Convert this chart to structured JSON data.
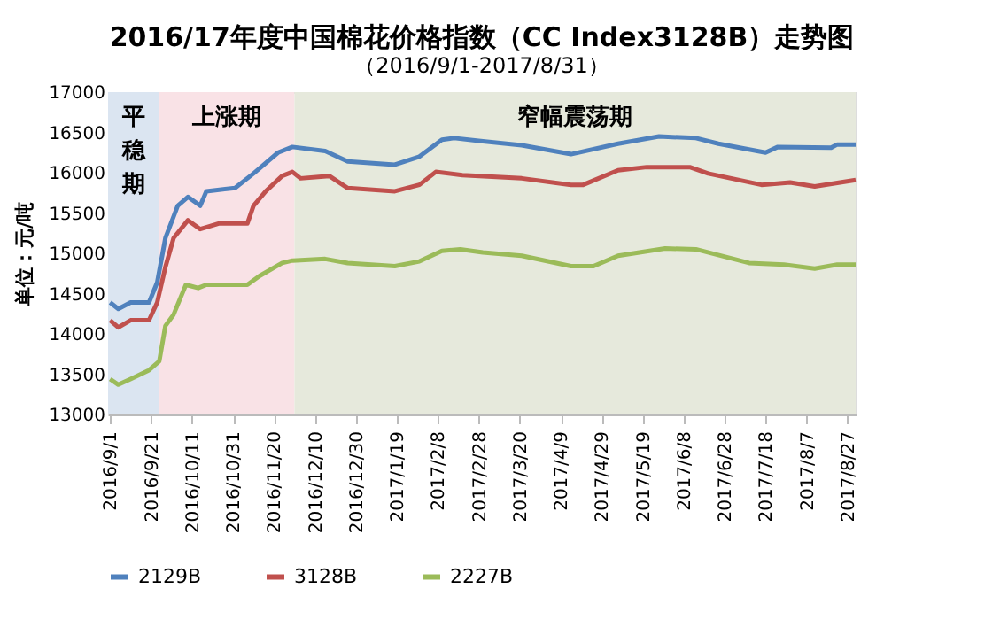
{
  "chart_data": {
    "type": "line",
    "title": "2016/17年度中国棉花价格指数（CC Index3128B）走势图",
    "subtitle": "（2016/9/1-2017/8/31）",
    "ylabel": "单位：元/吨",
    "x": [
      "2016-09-01",
      "2016-09-05",
      "2016-09-11",
      "2016-09-20",
      "2016-09-24",
      "2016-09-28",
      "2016-10-04",
      "2016-10-09",
      "2016-10-15",
      "2016-10-18",
      "2016-11-01",
      "2016-11-10",
      "2016-11-22",
      "2016-11-29",
      "2016-12-15",
      "2016-12-26",
      "2017-01-18",
      "2017-01-30",
      "2017-02-10",
      "2017-02-16",
      "2017-03-02",
      "2017-03-21",
      "2017-04-14",
      "2017-05-07",
      "2017-05-27",
      "2017-06-14",
      "2017-06-25",
      "2017-07-18",
      "2017-07-24",
      "2017-08-19",
      "2017-08-22",
      "2017-08-31"
    ],
    "series": [
      {
        "name": "2129B",
        "color": "#4f81bd",
        "values": [
          14390,
          14310,
          14390,
          14390,
          14640,
          15190,
          15590,
          15700,
          15590,
          15770,
          15810,
          15990,
          16250,
          16320,
          16270,
          16140,
          16100,
          16200,
          16410,
          16430,
          16390,
          16340,
          16230,
          16360,
          16450,
          16430,
          16360,
          16250,
          16320,
          16310,
          16350,
          16350
        ]
      },
      {
        "name": "3128B",
        "color": "#c0504d",
        "x": [
          "2016-09-01",
          "2016-09-05",
          "2016-09-11",
          "2016-09-20",
          "2016-09-24",
          "2016-09-28",
          "2016-10-02",
          "2016-10-09",
          "2016-10-15",
          "2016-10-24",
          "2016-11-07",
          "2016-11-10",
          "2016-11-16",
          "2016-11-24",
          "2016-11-29",
          "2016-12-03",
          "2016-12-17",
          "2016-12-26",
          "2017-01-18",
          "2017-01-30",
          "2017-02-07",
          "2017-02-20",
          "2017-03-21",
          "2017-04-14",
          "2017-04-20",
          "2017-05-07",
          "2017-05-21",
          "2017-06-11",
          "2017-06-20",
          "2017-07-16",
          "2017-07-30",
          "2017-08-11",
          "2017-08-31"
        ],
        "values": [
          14170,
          14080,
          14170,
          14170,
          14390,
          14830,
          15190,
          15410,
          15300,
          15370,
          15370,
          15590,
          15770,
          15960,
          16010,
          15930,
          15960,
          15810,
          15770,
          15850,
          16010,
          15970,
          15930,
          15850,
          15850,
          16030,
          16070,
          16070,
          15990,
          15850,
          15880,
          15830,
          15910
        ]
      },
      {
        "name": "2227B",
        "color": "#9bbb59",
        "x": [
          "2016-09-01",
          "2016-09-05",
          "2016-09-11",
          "2016-09-20",
          "2016-09-25",
          "2016-09-28",
          "2016-10-02",
          "2016-10-08",
          "2016-10-14",
          "2016-10-18",
          "2016-11-07",
          "2016-11-13",
          "2016-11-24",
          "2016-11-29",
          "2016-12-15",
          "2016-12-26",
          "2017-01-18",
          "2017-01-30",
          "2017-02-10",
          "2017-02-19",
          "2017-03-02",
          "2017-03-21",
          "2017-04-14",
          "2017-04-25",
          "2017-05-07",
          "2017-05-30",
          "2017-06-14",
          "2017-07-10",
          "2017-07-27",
          "2017-08-11",
          "2017-08-22",
          "2017-08-31"
        ],
        "values": [
          13440,
          13370,
          13440,
          13550,
          13660,
          14100,
          14240,
          14610,
          14570,
          14610,
          14610,
          14720,
          14880,
          14910,
          14930,
          14880,
          14840,
          14900,
          15030,
          15050,
          15010,
          14970,
          14840,
          14840,
          14970,
          15060,
          15050,
          14880,
          14860,
          14810,
          14860,
          14860
        ]
      }
    ],
    "xlim": [
      "2016-08-31",
      "2017-08-31"
    ],
    "xticks": [
      {
        "value": "2016-09-01",
        "label": "2016/9/1"
      },
      {
        "value": "2016-09-21",
        "label": "2016/9/21"
      },
      {
        "value": "2016-10-11",
        "label": "2016/10/11"
      },
      {
        "value": "2016-10-31",
        "label": "2016/10/31"
      },
      {
        "value": "2016-11-20",
        "label": "2016/11/20"
      },
      {
        "value": "2016-12-10",
        "label": "2016/12/10"
      },
      {
        "value": "2016-12-30",
        "label": "2016/12/30"
      },
      {
        "value": "2017-01-19",
        "label": "2017/1/19"
      },
      {
        "value": "2017-02-08",
        "label": "2017/2/8"
      },
      {
        "value": "2017-02-28",
        "label": "2017/2/28"
      },
      {
        "value": "2017-03-20",
        "label": "2017/3/20"
      },
      {
        "value": "2017-04-09",
        "label": "2017/4/9"
      },
      {
        "value": "2017-04-29",
        "label": "2017/4/29"
      },
      {
        "value": "2017-05-19",
        "label": "2017/5/19"
      },
      {
        "value": "2017-06-08",
        "label": "2017/6/8"
      },
      {
        "value": "2017-06-28",
        "label": "2017/6/28"
      },
      {
        "value": "2017-07-18",
        "label": "2017/7/18"
      },
      {
        "value": "2017-08-07",
        "label": "2017/8/7"
      },
      {
        "value": "2017-08-27",
        "label": "2017/8/27"
      }
    ],
    "ylim": [
      13000,
      17000
    ],
    "yticks": [
      13000,
      13500,
      14000,
      14500,
      15000,
      15500,
      16000,
      16500,
      17000
    ],
    "bands": [
      {
        "axis": "x",
        "from": "2016-08-31",
        "to": "2016-09-25",
        "label": "平稳期",
        "color": "#dbe5f1"
      },
      {
        "axis": "x",
        "from": "2016-09-25",
        "to": "2016-11-30",
        "label": "上涨期",
        "color": "#f9e2e6"
      },
      {
        "axis": "x",
        "from": "2016-11-30",
        "to": "2017-08-31",
        "label": "窄幅震荡期",
        "color": "#e6e9dc"
      }
    ],
    "legend": "bottom",
    "grid": false,
    "line_style": "solid",
    "marker": "none"
  }
}
